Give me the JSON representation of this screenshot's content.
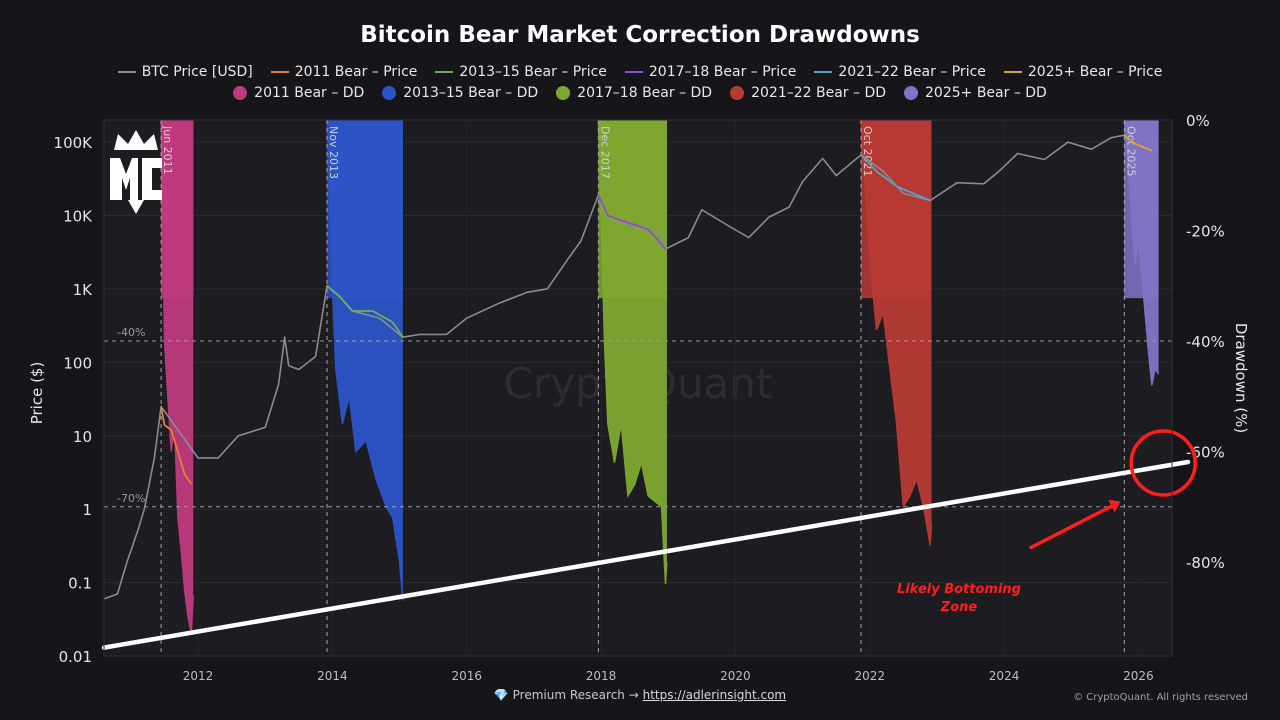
{
  "chart_data": {
    "type": "line",
    "title": "Bitcoin Bear Market Correction Drawdowns",
    "ylabel_left": "Price ($)",
    "ylabel_right": "Drawdown (%)",
    "y_left_scale": "log",
    "y_left_range": [
      0.01,
      200000
    ],
    "y_left_ticks": [
      "0.01",
      "0.1",
      "1",
      "10",
      "100",
      "1K",
      "10K",
      "100K"
    ],
    "y_right_range": [
      -97,
      0
    ],
    "y_right_ticks": [
      "0%",
      "-20%",
      "-40%",
      "-60%",
      "-80%"
    ],
    "x_range": [
      2010.6,
      2026.5
    ],
    "x_ticks": [
      "2012",
      "2014",
      "2016",
      "2018",
      "2020",
      "2022",
      "2024",
      "2026"
    ],
    "reference_lines": [
      {
        "label": "-40%",
        "value": -40
      },
      {
        "label": "-70%",
        "value": -70
      }
    ],
    "event_lines": [
      {
        "label": "Jun 2011",
        "x": 2011.45
      },
      {
        "label": "Nov 2013",
        "x": 2013.92
      },
      {
        "label": "Dec 2017",
        "x": 2017.96
      },
      {
        "label": "Oct 2021",
        "x": 2021.87
      },
      {
        "label": "Oct 2025",
        "x": 2025.79
      }
    ],
    "series": [
      {
        "name": "BTC Price [USD]",
        "kind": "price",
        "color": "#8c8c8c",
        "points": [
          [
            2010.6,
            0.06
          ],
          [
            2010.8,
            0.07
          ],
          [
            2010.95,
            0.2
          ],
          [
            2011.1,
            0.5
          ],
          [
            2011.2,
            1.0
          ],
          [
            2011.35,
            5
          ],
          [
            2011.45,
            25
          ],
          [
            2012.0,
            5
          ],
          [
            2012.3,
            5
          ],
          [
            2012.6,
            10
          ],
          [
            2013.0,
            13
          ],
          [
            2013.2,
            50
          ],
          [
            2013.29,
            220
          ],
          [
            2013.35,
            90
          ],
          [
            2013.5,
            80
          ],
          [
            2013.75,
            120
          ],
          [
            2013.92,
            1100
          ],
          [
            2014.1,
            800
          ],
          [
            2014.3,
            500
          ],
          [
            2014.7,
            400
          ],
          [
            2015.05,
            220
          ],
          [
            2015.3,
            240
          ],
          [
            2015.7,
            240
          ],
          [
            2016.0,
            400
          ],
          [
            2016.5,
            650
          ],
          [
            2016.9,
            900
          ],
          [
            2017.2,
            1000
          ],
          [
            2017.5,
            2500
          ],
          [
            2017.7,
            4500
          ],
          [
            2017.96,
            19000
          ],
          [
            2018.1,
            10000
          ],
          [
            2018.5,
            7000
          ],
          [
            2018.85,
            6300
          ],
          [
            2018.96,
            3500
          ],
          [
            2019.3,
            5000
          ],
          [
            2019.5,
            12000
          ],
          [
            2019.9,
            7200
          ],
          [
            2020.2,
            5000
          ],
          [
            2020.5,
            9500
          ],
          [
            2020.8,
            13000
          ],
          [
            2021.0,
            29000
          ],
          [
            2021.3,
            60000
          ],
          [
            2021.5,
            35000
          ],
          [
            2021.87,
            67000
          ],
          [
            2022.2,
            40000
          ],
          [
            2022.5,
            20000
          ],
          [
            2022.9,
            16000
          ],
          [
            2023.3,
            28000
          ],
          [
            2023.7,
            27000
          ],
          [
            2023.95,
            42000
          ],
          [
            2024.2,
            70000
          ],
          [
            2024.6,
            58000
          ],
          [
            2024.95,
            100000
          ],
          [
            2025.3,
            80000
          ],
          [
            2025.6,
            115000
          ],
          [
            2025.79,
            124000
          ],
          [
            2025.95,
            95000
          ],
          [
            2026.2,
            76000
          ]
        ]
      },
      {
        "name": "2011 Bear – Price",
        "kind": "price",
        "color": "#e0813a",
        "points": [
          [
            2011.45,
            25
          ],
          [
            2011.5,
            14
          ],
          [
            2011.6,
            12
          ],
          [
            2011.7,
            6
          ],
          [
            2011.8,
            3
          ],
          [
            2011.9,
            2.2
          ]
        ]
      },
      {
        "name": "2013–15 Bear – Price",
        "kind": "price",
        "color": "#6fae5c",
        "points": [
          [
            2013.92,
            1100
          ],
          [
            2014.1,
            800
          ],
          [
            2014.3,
            500
          ],
          [
            2014.6,
            500
          ],
          [
            2014.9,
            350
          ],
          [
            2015.05,
            220
          ]
        ]
      },
      {
        "name": "2017–18 Bear – Price",
        "kind": "price",
        "color": "#8a4fd4",
        "points": [
          [
            2017.96,
            19000
          ],
          [
            2018.1,
            10000
          ],
          [
            2018.4,
            8000
          ],
          [
            2018.7,
            6500
          ],
          [
            2018.96,
            3500
          ]
        ]
      },
      {
        "name": "2021–22 Bear – Price",
        "kind": "price",
        "color": "#4ea3c9",
        "points": [
          [
            2021.87,
            67000
          ],
          [
            2022.1,
            40000
          ],
          [
            2022.4,
            25000
          ],
          [
            2022.7,
            19000
          ],
          [
            2022.9,
            16000
          ]
        ]
      },
      {
        "name": "2025+ Bear – Price",
        "kind": "price",
        "color": "#d9a627",
        "points": [
          [
            2025.79,
            124000
          ],
          [
            2025.95,
            95000
          ],
          [
            2026.2,
            76000
          ]
        ]
      },
      {
        "name": "2011 Bear – DD",
        "kind": "dd",
        "color": "#c03a7e",
        "span": [
          2011.45,
          2011.93
        ],
        "points": [
          [
            2011.45,
            0
          ],
          [
            2011.5,
            -40
          ],
          [
            2011.55,
            -50
          ],
          [
            2011.6,
            -60
          ],
          [
            2011.65,
            -55
          ],
          [
            2011.7,
            -72
          ],
          [
            2011.75,
            -78
          ],
          [
            2011.8,
            -85
          ],
          [
            2011.85,
            -90
          ],
          [
            2011.9,
            -93
          ],
          [
            2011.93,
            -86
          ]
        ]
      },
      {
        "name": "2013–15 Bear – DD",
        "kind": "dd",
        "color": "#2c54c7",
        "span": [
          2013.92,
          2015.05
        ],
        "points": [
          [
            2013.92,
            0
          ],
          [
            2014.0,
            -30
          ],
          [
            2014.05,
            -45
          ],
          [
            2014.15,
            -55
          ],
          [
            2014.25,
            -50
          ],
          [
            2014.35,
            -60
          ],
          [
            2014.5,
            -58
          ],
          [
            2014.65,
            -65
          ],
          [
            2014.8,
            -70
          ],
          [
            2014.9,
            -72
          ],
          [
            2015.0,
            -80
          ],
          [
            2015.05,
            -87
          ]
        ]
      },
      {
        "name": "2017–18 Bear – DD",
        "kind": "dd",
        "color": "#7fa830",
        "span": [
          2017.96,
          2018.98
        ],
        "points": [
          [
            2017.96,
            0
          ],
          [
            2018.05,
            -40
          ],
          [
            2018.1,
            -55
          ],
          [
            2018.2,
            -62
          ],
          [
            2018.3,
            -55
          ],
          [
            2018.4,
            -68
          ],
          [
            2018.5,
            -66
          ],
          [
            2018.6,
            -62
          ],
          [
            2018.7,
            -68
          ],
          [
            2018.8,
            -69
          ],
          [
            2018.9,
            -70
          ],
          [
            2018.96,
            -84
          ],
          [
            2018.98,
            -80
          ]
        ]
      },
      {
        "name": "2021–22 Bear – DD",
        "kind": "dd",
        "color": "#b83a35",
        "span": [
          2021.87,
          2022.92
        ],
        "points": [
          [
            2021.87,
            0
          ],
          [
            2022.0,
            -25
          ],
          [
            2022.1,
            -38
          ],
          [
            2022.2,
            -35
          ],
          [
            2022.3,
            -45
          ],
          [
            2022.4,
            -55
          ],
          [
            2022.5,
            -70
          ],
          [
            2022.6,
            -68
          ],
          [
            2022.7,
            -65
          ],
          [
            2022.8,
            -70
          ],
          [
            2022.9,
            -77
          ],
          [
            2022.92,
            -73
          ]
        ]
      },
      {
        "name": "2025+ Bear – DD",
        "kind": "dd",
        "color": "#8174c7",
        "span": [
          2025.79,
          2026.3
        ],
        "points": [
          [
            2025.79,
            0
          ],
          [
            2025.85,
            -8
          ],
          [
            2025.9,
            -18
          ],
          [
            2025.95,
            -26
          ],
          [
            2026.0,
            -22
          ],
          [
            2026.05,
            -28
          ],
          [
            2026.1,
            -35
          ],
          [
            2026.15,
            -42
          ],
          [
            2026.2,
            -48
          ],
          [
            2026.25,
            -45
          ],
          [
            2026.3,
            -46
          ]
        ]
      }
    ],
    "trendline": {
      "price_start": [
        2010.6,
        0.013
      ],
      "price_end": [
        2026.5,
        4.0
      ],
      "color": "#ffffff"
    },
    "annotation": {
      "text_line1": "Likely Bottoming",
      "text_line2": "Zone",
      "color": "#ff1e1e",
      "circle_at": [
        2026.25,
        4.0
      ],
      "arrow_from": [
        2024.4,
        0.3
      ],
      "arrow_to": [
        2025.6,
        1.1
      ]
    }
  },
  "watermark": "CryptoQuant",
  "logo_text": "MC",
  "footer": {
    "icon": "💎",
    "text": "Premium Research →",
    "link": "https://adlerinsight.com"
  },
  "copyright": "© CryptoQuant. All rights reserved"
}
